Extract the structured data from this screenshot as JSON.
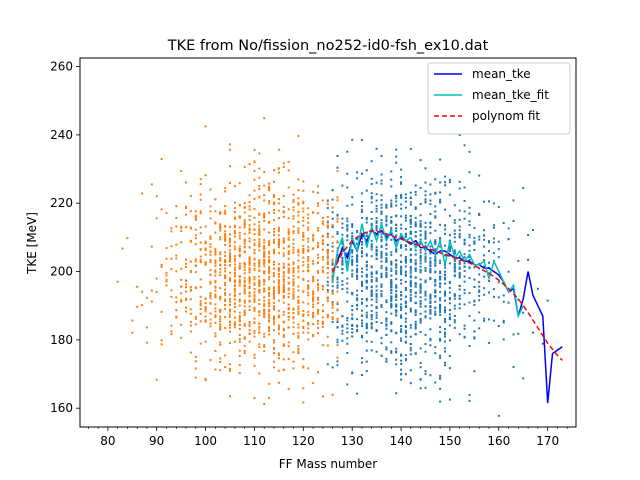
{
  "chart_data": {
    "type": "scatter",
    "title": "TKE from  No/fission_no252-id0-fsh_ex10.dat",
    "xlabel": "FF Mass number",
    "ylabel": "TKE [MeV]",
    "xlim": [
      74.3,
      175.8
    ],
    "ylim": [
      154.5,
      262.5
    ],
    "x_ticks": [
      80,
      90,
      100,
      110,
      120,
      130,
      140,
      150,
      160,
      170
    ],
    "x_minor_step": 2,
    "y_ticks": [
      160,
      180,
      200,
      220,
      240,
      260
    ],
    "legend_position": "upper right",
    "series": [
      {
        "name": "mean_tke",
        "kind": "line",
        "color": "#0000ff",
        "x": [
          126,
          127,
          128,
          129,
          130,
          131,
          132,
          133,
          134,
          135,
          136,
          137,
          138,
          139,
          140,
          141,
          142,
          143,
          144,
          145,
          146,
          147,
          148,
          149,
          150,
          151,
          152,
          153,
          154,
          155,
          156,
          157,
          158,
          159,
          160,
          161,
          162,
          163,
          164,
          165,
          166,
          167,
          168,
          169,
          170,
          171,
          172,
          173
        ],
        "y": [
          200,
          203,
          207,
          204,
          209,
          206,
          211,
          209,
          212,
          211,
          212,
          210,
          211,
          209,
          210,
          209,
          208,
          209,
          207,
          207,
          206,
          205,
          206,
          206,
          205,
          204,
          204,
          203,
          203,
          202,
          202,
          201,
          201,
          200,
          199,
          197,
          194,
          195,
          187,
          192,
          200,
          193,
          190,
          187,
          161.5,
          176,
          177,
          178
        ]
      },
      {
        "name": "mean_tke_fit",
        "kind": "line",
        "color": "#00bfbf",
        "x": [
          126,
          127,
          128,
          129,
          130,
          131,
          132,
          133,
          134,
          135,
          136,
          137,
          138,
          139,
          140,
          141,
          142,
          143,
          144,
          145,
          146,
          147,
          148,
          149,
          150,
          151,
          152,
          153,
          154,
          155,
          156,
          157,
          158,
          159,
          160,
          161,
          162,
          163,
          164,
          165
        ],
        "y": [
          197,
          206,
          210,
          200,
          210,
          206,
          214,
          207,
          213,
          209,
          214,
          209,
          212,
          207,
          211,
          209,
          210,
          207,
          209,
          206,
          209,
          205,
          209,
          202,
          209,
          204,
          206,
          203,
          205,
          202,
          202,
          203,
          198,
          203,
          200,
          197,
          194,
          196,
          187,
          190
        ]
      },
      {
        "name": "polynom fit",
        "kind": "line",
        "style": "dashed",
        "color": "#ff0000",
        "x": [
          126,
          128,
          130,
          132,
          134,
          136,
          138,
          140,
          142,
          144,
          146,
          148,
          150,
          152,
          154,
          156,
          158,
          160,
          162,
          164,
          166,
          168,
          170,
          172,
          173
        ],
        "y": [
          200,
          205.5,
          209,
          211,
          212,
          211.5,
          210.5,
          209.5,
          208.5,
          207.5,
          206.5,
          205.5,
          204.5,
          203.5,
          202.5,
          201,
          199.5,
          197.5,
          195,
          192,
          188,
          183.5,
          179,
          175.5,
          174
        ]
      },
      {
        "name": "heavy fragments",
        "kind": "points",
        "color": "#1f77b4",
        "x_range": [
          125,
          173
        ],
        "center": 140,
        "tke_center": 200,
        "tke_spread": 14
      },
      {
        "name": "light fragments",
        "kind": "points",
        "color": "#ff7f0e",
        "x_range": [
          79,
          127
        ],
        "center": 112,
        "tke_center": 200,
        "tke_spread": 14
      }
    ]
  }
}
